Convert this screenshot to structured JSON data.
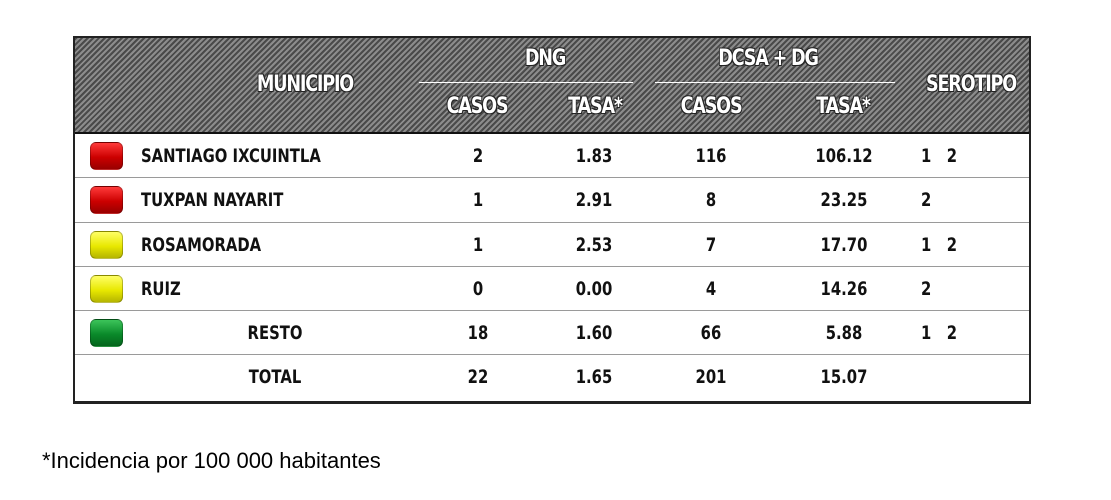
{
  "header": {
    "municipio": "MUNICIPIO",
    "group_dng": "DNG",
    "group_dcsa": "DCSA + DG",
    "serotipo": "SEROTIPO",
    "casos_1": "CASOS",
    "tasa_1": "TASA*",
    "casos_2": "CASOS",
    "tasa_2": "TASA*"
  },
  "rows": [
    {
      "municipio": "SANTIAGO IXCUINTLA",
      "status_color": "#cc0000",
      "dng_casos": "2",
      "dng_tasa": "1.83",
      "dcsa_casos": "116",
      "dcsa_tasa": "106.12",
      "serotipo": "1   2"
    },
    {
      "municipio": "TUXPAN NAYARIT",
      "status_color": "#cc0000",
      "dng_casos": "1",
      "dng_tasa": "2.91",
      "dcsa_casos": "8",
      "dcsa_tasa": "23.25",
      "serotipo": "2"
    },
    {
      "municipio": "ROSAMORADA",
      "status_color": "#e8e800",
      "dng_casos": "1",
      "dng_tasa": "2.53",
      "dcsa_casos": "7",
      "dcsa_tasa": "17.70",
      "serotipo": "1   2"
    },
    {
      "municipio": "RUIZ",
      "status_color": "#e8e800",
      "dng_casos": "0",
      "dng_tasa": "0.00",
      "dcsa_casos": "4",
      "dcsa_tasa": "14.26",
      "serotipo": "2"
    },
    {
      "municipio": "RESTO",
      "status_color": "#0a8a2a",
      "dng_casos": "18",
      "dng_tasa": "1.60",
      "dcsa_casos": "66",
      "dcsa_tasa": "5.88",
      "serotipo": "1   2"
    },
    {
      "municipio": "TOTAL",
      "status_color": "",
      "dng_casos": "22",
      "dng_tasa": "1.65",
      "dcsa_casos": "201",
      "dcsa_tasa": "15.07",
      "serotipo": ""
    }
  ],
  "footnote": "*Incidencia por 100 000 habitantes",
  "colors": {
    "red": "#cc0000",
    "yellow": "#e8e800",
    "green": "#0a8a2a",
    "header_bg": "#6f6f6f"
  }
}
